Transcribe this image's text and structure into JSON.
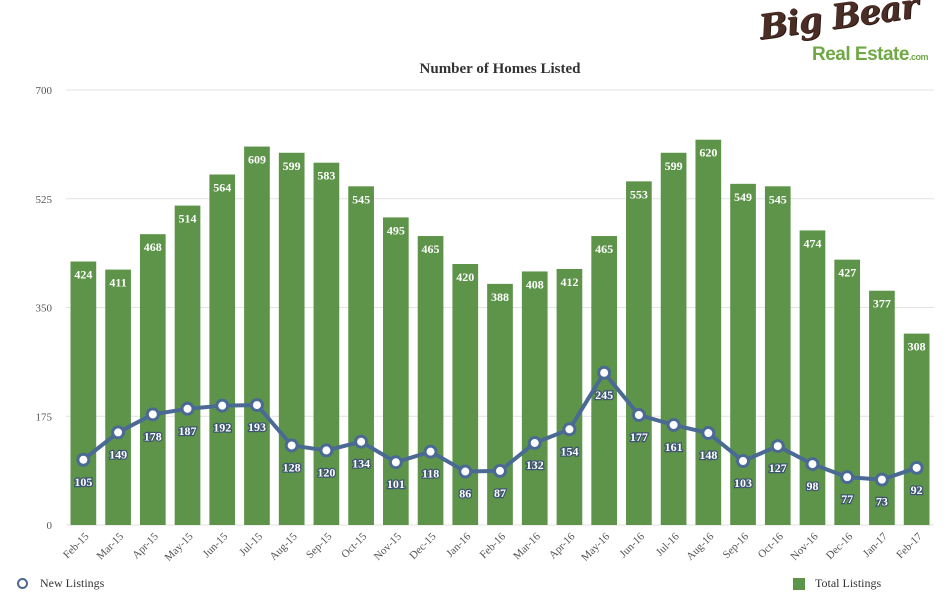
{
  "logo": {
    "line1": "Big Bear",
    "line2": "Real Estate",
    "suffix": ".com"
  },
  "colors": {
    "bar": "#5d944a",
    "line": "#4a6a94",
    "marker_fill": "#ffffff",
    "grid": "#e2e2e2",
    "label": "#ffffff"
  },
  "chart_data": {
    "type": "bar",
    "title": "Number of Homes Listed",
    "xlabel": "",
    "ylabel": "",
    "ylim": [
      0,
      700
    ],
    "yticks": [
      "0",
      "175",
      "350",
      "525",
      "700"
    ],
    "grid": true,
    "legend_placement": "bottom",
    "categories": [
      "Feb-15",
      "Mar-15",
      "Apr-15",
      "May-15",
      "Jun-15",
      "Jul-15",
      "Aug-15",
      "Sep-15",
      "Oct-15",
      "Nov-15",
      "Dec-15",
      "Jan-16",
      "Feb-16",
      "Mar-16",
      "Apr-16",
      "May-16",
      "Jun-16",
      "Jul-16",
      "Aug-16",
      "Sep-16",
      "Oct-16",
      "Nov-16",
      "Dec-16",
      "Jan-17",
      "Feb-17"
    ],
    "series": [
      {
        "name": "Total Listings",
        "type": "bar",
        "values": [
          424,
          411,
          468,
          514,
          564,
          609,
          599,
          583,
          545,
          495,
          465,
          420,
          388,
          408,
          412,
          465,
          553,
          599,
          620,
          549,
          545,
          474,
          427,
          377,
          308
        ]
      },
      {
        "name": "New Listings",
        "type": "line",
        "values": [
          105,
          149,
          178,
          187,
          192,
          193,
          128,
          120,
          134,
          101,
          118,
          86,
          87,
          132,
          154,
          245,
          177,
          161,
          148,
          103,
          127,
          98,
          77,
          73,
          92
        ]
      }
    ]
  }
}
